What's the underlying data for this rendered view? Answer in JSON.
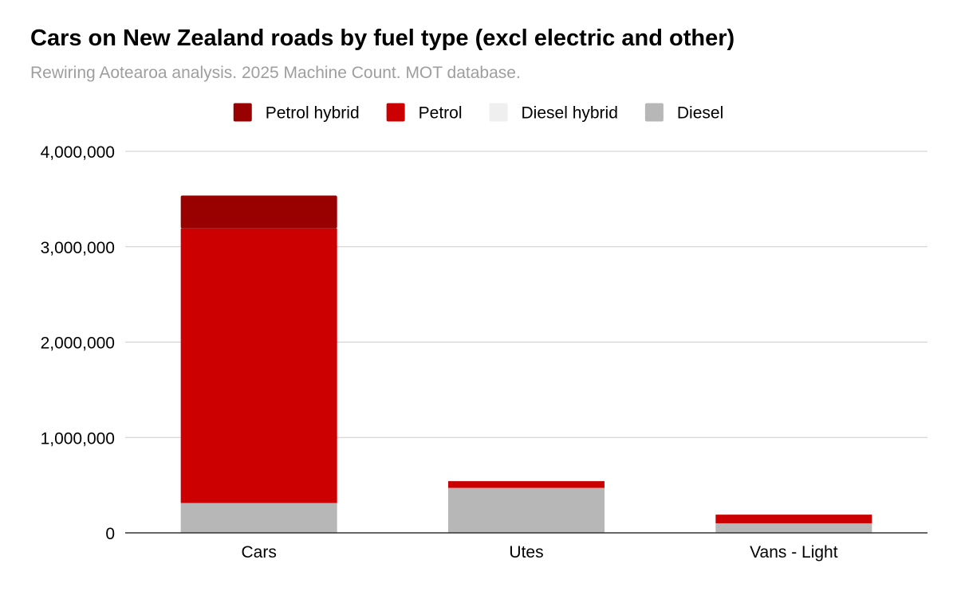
{
  "chart_data": {
    "type": "bar",
    "stacked": true,
    "title": "Cars on New Zealand roads by fuel type (excl electric and other)",
    "subtitle": "Rewiring Aotearoa analysis. 2025 Machine Count. MOT database.",
    "xlabel": "",
    "ylabel": "",
    "categories": [
      "Cars",
      "Utes",
      "Vans - Light"
    ],
    "ylim": [
      0,
      4000000
    ],
    "yticks": [
      0,
      1000000,
      2000000,
      3000000,
      4000000
    ],
    "ytick_labels": [
      "0",
      "1,000,000",
      "2,000,000",
      "3,000,000",
      "4,000,000"
    ],
    "grid": true,
    "legend_position": "top",
    "legend_order": [
      "Petrol hybrid",
      "Petrol",
      "Diesel hybrid",
      "Diesel"
    ],
    "series": [
      {
        "name": "Diesel",
        "color": "#b7b7b7",
        "values": [
          310000,
          470000,
          100000
        ]
      },
      {
        "name": "Diesel hybrid",
        "color": "#efefef",
        "values": [
          2000,
          1000,
          500
        ]
      },
      {
        "name": "Petrol",
        "color": "#cc0000",
        "values": [
          2880000,
          70000,
          90000
        ]
      },
      {
        "name": "Petrol hybrid",
        "color": "#990000",
        "values": [
          345000,
          2000,
          1000
        ]
      }
    ]
  }
}
